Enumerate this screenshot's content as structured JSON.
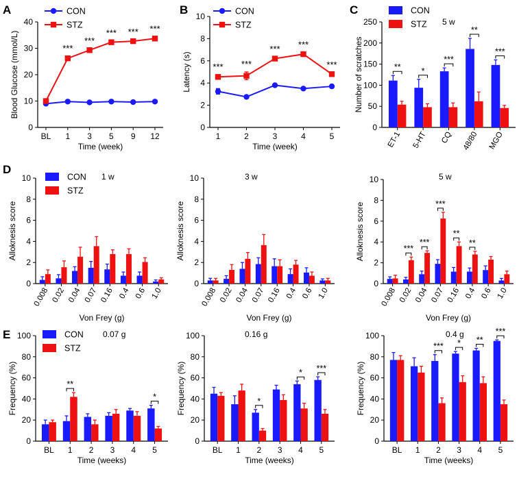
{
  "colors": {
    "con": "#1a1aff",
    "stz": "#ee1111",
    "axis": "#000000"
  },
  "panel_letters": [
    "A",
    "B",
    "C",
    "D",
    "E"
  ],
  "chart_data": [
    {
      "id": "A",
      "type": "line",
      "categories": [
        "BL",
        "1",
        "3",
        "5",
        "9",
        "12"
      ],
      "xlabel": "Time (week)",
      "ylabel": "Blood Glucose (mmol/L)",
      "ylim": [
        0,
        40
      ],
      "yticks": [
        0,
        10,
        20,
        30,
        40
      ],
      "legend": [
        "CON",
        "STZ"
      ],
      "series": [
        {
          "name": "CON",
          "values": [
            9,
            9.8,
            9.5,
            9.8,
            9.6,
            9.8
          ],
          "err": [
            0.3,
            0.2,
            0.2,
            0.2,
            0.2,
            0.2
          ]
        },
        {
          "name": "STZ",
          "values": [
            10,
            26.2,
            29.3,
            32.3,
            32.7,
            33.7
          ],
          "err": [
            0.6,
            0.8,
            0.6,
            0.5,
            0.5,
            0.7
          ]
        }
      ],
      "annotations": [
        "",
        "***",
        "***",
        "***",
        "***",
        "***"
      ]
    },
    {
      "id": "B",
      "type": "line",
      "categories": [
        "1",
        "2",
        "3",
        "4",
        "5"
      ],
      "xlabel": "Time (week)",
      "ylabel": "Latency (s)",
      "ylim": [
        0,
        10
      ],
      "yticks": [
        0,
        2,
        4,
        6,
        8,
        10
      ],
      "legend": [
        "CON",
        "STZ"
      ],
      "series": [
        {
          "name": "CON",
          "values": [
            3.25,
            2.75,
            3.8,
            3.5,
            3.7
          ],
          "err": [
            0.25,
            0.1,
            0.1,
            0.1,
            0.15
          ]
        },
        {
          "name": "STZ",
          "values": [
            4.55,
            4.65,
            6.2,
            6.6,
            4.8
          ],
          "err": [
            0.2,
            0.35,
            0.15,
            0.15,
            0.15
          ]
        }
      ],
      "annotations": [
        "***",
        "***",
        "***",
        "***",
        "***"
      ]
    },
    {
      "id": "C",
      "type": "bar",
      "categories": [
        "ET-1",
        "5-HT",
        "CQ",
        "48/80",
        "MGO"
      ],
      "ylabel": "Number of scratches",
      "note": "5 w",
      "ylim": [
        0,
        250
      ],
      "yticks": [
        0,
        50,
        100,
        150,
        200,
        250
      ],
      "legend": [
        "CON",
        "STZ"
      ],
      "series": [
        {
          "name": "CON",
          "values": [
            111,
            94,
            133,
            186,
            148
          ],
          "err": [
            12,
            20,
            8,
            25,
            12
          ]
        },
        {
          "name": "STZ",
          "values": [
            54,
            48,
            48,
            62,
            46
          ],
          "err": [
            8,
            8,
            10,
            22,
            6
          ]
        }
      ],
      "annotations": [
        "**",
        "*",
        "***",
        "**",
        "***"
      ]
    },
    {
      "id": "D1",
      "type": "bar",
      "categories": [
        "0.008",
        "0.02",
        "0.04",
        "0.07",
        "0.16",
        "0.4",
        "0.6",
        "1.0"
      ],
      "xlabel": "Von Frey (g)",
      "ylabel": "Alloknesis score",
      "note": "1 w",
      "ylim": [
        0,
        10
      ],
      "yticks": [
        0,
        2,
        4,
        6,
        8,
        10
      ],
      "legend": [
        "CON",
        "STZ"
      ],
      "series": [
        {
          "name": "CON",
          "values": [
            0.35,
            0.5,
            1.2,
            1.5,
            1.35,
            0.75,
            0.75,
            0.2
          ],
          "err": [
            0.3,
            0.35,
            0.4,
            0.6,
            0.5,
            0.35,
            0.35,
            0.15
          ]
        },
        {
          "name": "STZ",
          "values": [
            0.9,
            1.55,
            2.55,
            3.55,
            2.8,
            2.8,
            2.05,
            0.4
          ],
          "err": [
            0.4,
            0.6,
            0.9,
            0.9,
            0.4,
            0.5,
            0.4,
            0.15
          ]
        }
      ],
      "annotations": [
        "",
        "",
        "",
        "",
        "",
        "",
        "",
        ""
      ]
    },
    {
      "id": "D2",
      "type": "bar",
      "categories": [
        "0.008",
        "0.02",
        "0.04",
        "0.07",
        "0.16",
        "0.4",
        "0.6",
        "1.0"
      ],
      "xlabel": "Von Frey (g)",
      "ylabel": "Alloknesis score",
      "note": "3 w",
      "ylim": [
        0,
        10
      ],
      "yticks": [
        0,
        2,
        4,
        6,
        8,
        10
      ],
      "series": [
        {
          "name": "CON",
          "values": [
            0.3,
            0.45,
            1.4,
            1.85,
            1.65,
            0.9,
            1.05,
            0.3
          ],
          "err": [
            0.2,
            0.3,
            0.6,
            0.6,
            0.7,
            0.5,
            0.45,
            0.15
          ]
        },
        {
          "name": "STZ",
          "values": [
            0.3,
            1.3,
            2.35,
            3.65,
            1.65,
            1.8,
            0.75,
            0.3
          ],
          "err": [
            0.2,
            0.5,
            0.6,
            1.0,
            0.6,
            0.4,
            0.35,
            0.2
          ]
        }
      ],
      "annotations": [
        "",
        "",
        "",
        "",
        "",
        "",
        "",
        ""
      ]
    },
    {
      "id": "D3",
      "type": "bar",
      "categories": [
        "0.008",
        "0.02",
        "0.04",
        "0.07",
        "0.16",
        "0.4",
        "0.6",
        "1.0"
      ],
      "xlabel": "Von Frey (g)",
      "ylabel": "Alloknesis score",
      "note": "5 w",
      "ylim": [
        0,
        10
      ],
      "yticks": [
        0,
        2,
        4,
        6,
        8,
        10
      ],
      "series": [
        {
          "name": "CON",
          "values": [
            0.45,
            0.4,
            0.9,
            1.9,
            1.15,
            1.15,
            1.3,
            0.3
          ],
          "err": [
            0.2,
            0.2,
            0.3,
            0.4,
            0.4,
            0.35,
            0.4,
            0.2
          ]
        },
        {
          "name": "STZ",
          "values": [
            0.5,
            2.25,
            2.95,
            6.25,
            3.6,
            2.8,
            2.3,
            0.9
          ],
          "err": [
            0.3,
            0.3,
            0.2,
            0.6,
            0.4,
            0.3,
            0.3,
            0.3
          ]
        }
      ],
      "annotations": [
        "",
        "***",
        "***",
        "***",
        "**",
        "**",
        "",
        ""
      ]
    },
    {
      "id": "E1",
      "type": "bar",
      "categories": [
        "BL",
        "1",
        "2",
        "3",
        "4",
        "5"
      ],
      "xlabel": "Time (weeks)",
      "ylabel": "Frequency (%)",
      "note": "0.07 g",
      "ylim": [
        0,
        100
      ],
      "yticks": [
        0,
        20,
        40,
        60,
        80,
        100
      ],
      "legend": [
        "CON",
        "STZ"
      ],
      "series": [
        {
          "name": "CON",
          "values": [
            16,
            19,
            23,
            24,
            29,
            31
          ],
          "err": [
            4,
            5,
            3,
            3,
            2,
            3
          ]
        },
        {
          "name": "STZ",
          "values": [
            18,
            42,
            16,
            26,
            24,
            12
          ],
          "err": [
            2,
            4,
            4,
            4,
            4,
            2
          ]
        }
      ],
      "annotations": [
        "",
        "**",
        "",
        "",
        "",
        "*"
      ]
    },
    {
      "id": "E2",
      "type": "bar",
      "categories": [
        "BL",
        "1",
        "2",
        "3",
        "4",
        "5"
      ],
      "xlabel": "Time (weeks)",
      "ylabel": "Frequency (%)",
      "note": "0.16 g",
      "ylim": [
        0,
        100
      ],
      "yticks": [
        0,
        20,
        40,
        60,
        80,
        100
      ],
      "series": [
        {
          "name": "CON",
          "values": [
            45,
            35,
            27,
            49,
            54,
            58
          ],
          "err": [
            6,
            8,
            3,
            4,
            3,
            3
          ]
        },
        {
          "name": "STZ",
          "values": [
            43,
            48,
            10,
            39,
            31,
            26
          ],
          "err": [
            3,
            6,
            2,
            5,
            5,
            4
          ]
        }
      ],
      "annotations": [
        "",
        "",
        "*",
        "",
        "*",
        "***"
      ]
    },
    {
      "id": "E3",
      "type": "bar",
      "categories": [
        "BL",
        "1",
        "2",
        "3",
        "4",
        "5"
      ],
      "xlabel": "Time (weeks)",
      "ylabel": "Frequency (%)",
      "note": "0.4 g",
      "ylim": [
        0,
        100
      ],
      "yticks": [
        0,
        20,
        40,
        60,
        80,
        100
      ],
      "series": [
        {
          "name": "CON",
          "values": [
            77,
            71,
            76,
            83,
            86,
            95
          ],
          "err": [
            7,
            8,
            6,
            2,
            2,
            1
          ]
        },
        {
          "name": "STZ",
          "values": [
            77,
            65,
            36,
            56,
            55,
            35
          ],
          "err": [
            4,
            6,
            5,
            6,
            6,
            4
          ]
        }
      ],
      "annotations": [
        "",
        "",
        "***",
        "*",
        "**",
        "***"
      ]
    }
  ]
}
